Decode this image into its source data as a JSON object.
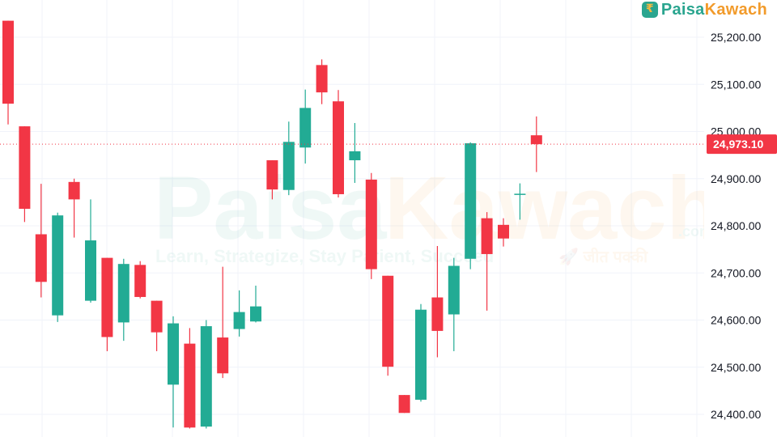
{
  "brand": {
    "logo_part1": "Paisa",
    "logo_part2": "Kawach",
    "watermark_part1": "Paisa",
    "watermark_part2": "Kawach",
    "watermark_suffix": ".com",
    "watermark_tagline": "Learn, Strategize, Stay Patient, Succeed",
    "watermark_hindi": "🚀 जीत पक्की",
    "colors": {
      "teal": "#2aa58f",
      "orange": "#f29b2b"
    }
  },
  "colors": {
    "up": "#22ab94",
    "down": "#f23645",
    "grid": "#f0f3fa",
    "background": "#ffffff",
    "axis_text": "#131722"
  },
  "chart_data": {
    "type": "candlestick",
    "y_axis_position": "right",
    "ylim": [
      24370,
      25235
    ],
    "y_ticks": [
      25200,
      25100,
      25000,
      24900,
      24800,
      24700,
      24600,
      24500,
      24400
    ],
    "y_tick_labels": [
      "25,200.00",
      "25,100.00",
      "25,000.00",
      "24,900.00",
      "24,800.00",
      "24,700.00",
      "24,600.00",
      "24,500.00",
      "24,400.00"
    ],
    "last_price": 24973.1,
    "last_price_label": "24,973.10",
    "grid": true,
    "candles": [
      {
        "o": 25235,
        "h": 25235,
        "l": 25015,
        "c": 25059
      },
      {
        "o": 25011,
        "h": 25011,
        "l": 24808,
        "c": 24836
      },
      {
        "o": 24782,
        "h": 24889,
        "l": 24648,
        "c": 24681
      },
      {
        "o": 24610,
        "h": 24828,
        "l": 24596,
        "c": 24822
      },
      {
        "o": 24893,
        "h": 24900,
        "l": 24775,
        "c": 24856
      },
      {
        "o": 24641,
        "h": 24856,
        "l": 24637,
        "c": 24769
      },
      {
        "o": 24732,
        "h": 24732,
        "l": 24534,
        "c": 24564
      },
      {
        "o": 24595,
        "h": 24730,
        "l": 24556,
        "c": 24719
      },
      {
        "o": 24717,
        "h": 24725,
        "l": 24646,
        "c": 24649
      },
      {
        "o": 24641,
        "h": 24641,
        "l": 24534,
        "c": 24574
      },
      {
        "o": 24463,
        "h": 24608,
        "l": 24372,
        "c": 24593
      },
      {
        "o": 24550,
        "h": 24583,
        "l": 24370,
        "c": 24372
      },
      {
        "o": 24374,
        "h": 24600,
        "l": 24370,
        "c": 24587
      },
      {
        "o": 24563,
        "h": 24713,
        "l": 24477,
        "c": 24487
      },
      {
        "o": 24581,
        "h": 24663,
        "l": 24565,
        "c": 24617
      },
      {
        "o": 24597,
        "h": 24673,
        "l": 24595,
        "c": 24629
      },
      {
        "o": 24939,
        "h": 24939,
        "l": 24856,
        "c": 24877
      },
      {
        "o": 24876,
        "h": 25021,
        "l": 24865,
        "c": 24978
      },
      {
        "o": 24966,
        "h": 25089,
        "l": 24932,
        "c": 25050
      },
      {
        "o": 25141,
        "h": 25153,
        "l": 25058,
        "c": 25083
      },
      {
        "o": 25064,
        "h": 25088,
        "l": 24860,
        "c": 24867
      },
      {
        "o": 24939,
        "h": 25018,
        "l": 24891,
        "c": 24958
      },
      {
        "o": 24898,
        "h": 24912,
        "l": 24687,
        "c": 24708
      },
      {
        "o": 24694,
        "h": 24694,
        "l": 24482,
        "c": 24501
      },
      {
        "o": 24441,
        "h": 24441,
        "l": 24403,
        "c": 24403
      },
      {
        "o": 24431,
        "h": 24634,
        "l": 24427,
        "c": 24622
      },
      {
        "o": 24648,
        "h": 24757,
        "l": 24521,
        "c": 24577
      },
      {
        "o": 24612,
        "h": 24732,
        "l": 24534,
        "c": 24715
      },
      {
        "o": 24730,
        "h": 24977,
        "l": 24708,
        "c": 24975
      },
      {
        "o": 24816,
        "h": 24829,
        "l": 24620,
        "c": 24740
      },
      {
        "o": 24802,
        "h": 24816,
        "l": 24756,
        "c": 24773
      },
      {
        "o": 24866,
        "h": 24890,
        "l": 24813,
        "c": 24868
      },
      {
        "o": 24992,
        "h": 25032,
        "l": 24914,
        "c": 24973.1
      }
    ]
  }
}
